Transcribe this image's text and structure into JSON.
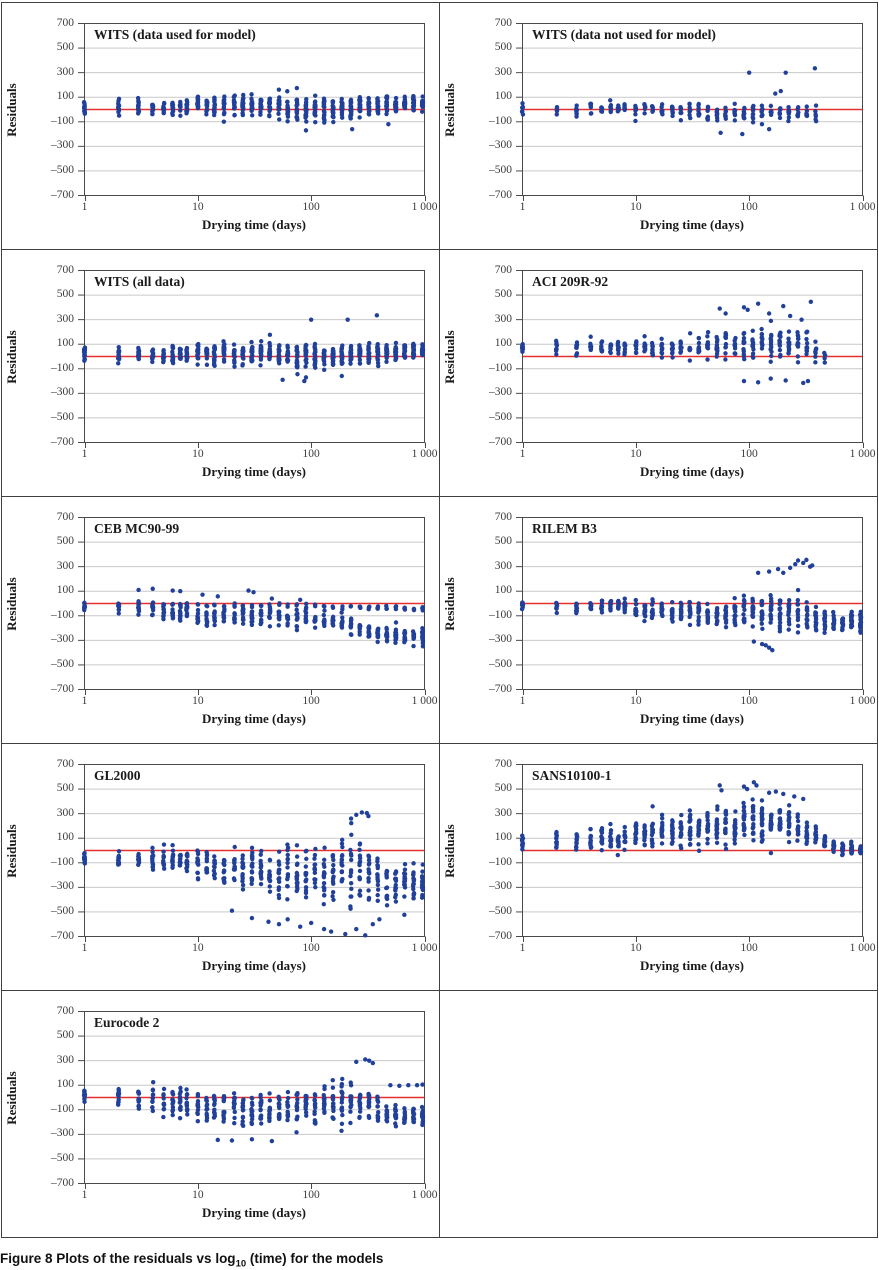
{
  "figure": {
    "caption": {
      "prefix": "Figure 8",
      "text_before_sub": " Plots of the residuals vs log",
      "subscript": "10",
      "text_after_sub": " (time) for the models"
    }
  },
  "axes": {
    "x_label": "Drying time (days)",
    "y_label": "Residuals",
    "x_scale": "log10",
    "x_range": [
      1,
      1000
    ],
    "y_range": [
      -700,
      700
    ],
    "x_tick_values": [
      1,
      10,
      100,
      1000
    ],
    "x_tick_labels": [
      "1",
      "10",
      "100",
      "1 000"
    ],
    "y_tick_values": [
      700,
      500,
      300,
      100,
      -100,
      -300,
      -500,
      -700
    ],
    "y_tick_labels": [
      "700",
      "500",
      "300",
      "100",
      "–100",
      "–300",
      "–500",
      "–700"
    ],
    "gridline_values": [
      500,
      300,
      100,
      -100,
      -300,
      -500
    ],
    "zero_line_value": 0
  },
  "style": {
    "point_color": "#20409a",
    "zero_line_color": "#e4302e",
    "grid_color": "#c9c9c9",
    "frame_color": "#4a4a4a",
    "tick_color": "#4a4a4a"
  },
  "chart_data": {
    "type": "scatter",
    "layout": "2-column by 5-row grid of residual plots, last cell empty",
    "note": "profile entries are [time_days, residual_center, residual_half_spread, points_per_time] read from the figure; outliers are explicit [x,y] points",
    "x_positions": [
      1,
      2,
      3,
      4,
      5,
      6,
      7,
      8,
      10,
      12,
      14,
      17,
      21,
      25,
      30,
      36,
      43,
      52,
      62,
      75,
      90,
      108,
      130,
      156,
      187,
      224,
      269,
      323,
      387,
      464,
      557,
      668,
      801,
      961
    ],
    "plots": [
      {
        "title": "WITS (data used for model)",
        "x_max": 1000,
        "clip": [
          -175,
          180
        ],
        "profile": [
          [
            1,
            15,
            65,
            14
          ],
          [
            8,
            18,
            70,
            12
          ],
          [
            10,
            28,
            85,
            16
          ],
          [
            40,
            30,
            95,
            18
          ],
          [
            90,
            5,
            110,
            18
          ],
          [
            200,
            10,
            105,
            20
          ],
          [
            400,
            35,
            85,
            20
          ],
          [
            600,
            45,
            65,
            22
          ],
          [
            1000,
            50,
            55,
            24
          ]
        ],
        "outliers": [
          [
            90,
            -170
          ],
          [
            230,
            -160
          ],
          [
            480,
            -120
          ]
        ]
      },
      {
        "title": "WITS (data not used for model)",
        "x_max": 430,
        "clip": [
          -205,
          120
        ],
        "profile": [
          [
            1,
            10,
            55,
            8
          ],
          [
            8,
            8,
            55,
            6
          ],
          [
            10,
            0,
            60,
            7
          ],
          [
            30,
            -5,
            70,
            8
          ],
          [
            60,
            -25,
            80,
            8
          ],
          [
            100,
            -25,
            90,
            9
          ],
          [
            200,
            -30,
            90,
            8
          ],
          [
            430,
            -20,
            70,
            5
          ]
        ],
        "outliers": [
          [
            100,
            300
          ],
          [
            210,
            300
          ],
          [
            380,
            335
          ],
          [
            56,
            -190
          ],
          [
            87,
            -200
          ],
          [
            150,
            -160
          ],
          [
            390,
            -95
          ],
          [
            170,
            130
          ],
          [
            190,
            150
          ]
        ]
      },
      {
        "title": "WITS (all data)",
        "x_max": 1000,
        "clip": [
          -190,
          180
        ],
        "profile": [
          [
            1,
            15,
            65,
            16
          ],
          [
            8,
            16,
            70,
            14
          ],
          [
            10,
            25,
            85,
            18
          ],
          [
            40,
            25,
            95,
            20
          ],
          [
            90,
            0,
            110,
            20
          ],
          [
            200,
            5,
            105,
            22
          ],
          [
            400,
            30,
            85,
            22
          ],
          [
            600,
            45,
            65,
            24
          ],
          [
            1000,
            48,
            55,
            26
          ]
        ],
        "outliers": [
          [
            100,
            300
          ],
          [
            210,
            300
          ],
          [
            380,
            335
          ],
          [
            90,
            -170
          ],
          [
            56,
            -190
          ],
          [
            87,
            -200
          ]
        ]
      },
      {
        "title": "ACI 209R-92",
        "x_max": 500,
        "clip": [
          -225,
          450
        ],
        "profile": [
          [
            1,
            70,
            60,
            10
          ],
          [
            8,
            75,
            65,
            9
          ],
          [
            10,
            70,
            80,
            10
          ],
          [
            30,
            70,
            105,
            10
          ],
          [
            60,
            90,
            130,
            11
          ],
          [
            100,
            100,
            150,
            12
          ],
          [
            200,
            110,
            160,
            12
          ],
          [
            350,
            80,
            160,
            10
          ],
          [
            500,
            -30,
            50,
            3
          ]
        ],
        "outliers": [
          [
            55,
            390
          ],
          [
            62,
            350
          ],
          [
            90,
            400
          ],
          [
            97,
            380
          ],
          [
            120,
            430
          ],
          [
            150,
            350
          ],
          [
            200,
            410
          ],
          [
            230,
            330
          ],
          [
            290,
            300
          ],
          [
            350,
            445
          ],
          [
            90,
            -200
          ],
          [
            120,
            -210
          ],
          [
            155,
            -180
          ],
          [
            210,
            -195
          ],
          [
            300,
            -215
          ],
          [
            330,
            -200
          ]
        ]
      },
      {
        "title": "CEB MC90-99",
        "x_max": 1000,
        "clip": [
          -355,
          125
        ],
        "profile": [
          [
            1,
            -35,
            55,
            9
          ],
          [
            3,
            -45,
            75,
            10
          ],
          [
            8,
            -75,
            80,
            10
          ],
          [
            10,
            -105,
            70,
            10
          ],
          [
            30,
            -105,
            90,
            11
          ],
          [
            60,
            -115,
            90,
            10
          ],
          [
            100,
            -125,
            90,
            10
          ],
          [
            200,
            -175,
            80,
            10
          ],
          [
            300,
            -225,
            70,
            12
          ],
          [
            430,
            -255,
            70,
            14
          ],
          [
            1000,
            -265,
            75,
            16
          ]
        ],
        "band2": [
          [
            60,
            -15,
            20,
            2
          ],
          [
            1000,
            -40,
            25,
            3
          ]
        ],
        "outliers": [
          [
            3,
            110
          ],
          [
            4,
            120
          ],
          [
            6,
            105
          ],
          [
            7,
            100
          ],
          [
            11,
            72
          ],
          [
            15,
            58
          ],
          [
            28,
            105
          ],
          [
            31,
            92
          ],
          [
            45,
            40
          ],
          [
            80,
            30
          ]
        ]
      },
      {
        "title": "RILEM B3",
        "x_max": 1000,
        "clip": [
          -390,
          365
        ],
        "profile": [
          [
            1,
            -15,
            50,
            10
          ],
          [
            8,
            -25,
            70,
            11
          ],
          [
            10,
            -45,
            85,
            13
          ],
          [
            30,
            -75,
            100,
            14
          ],
          [
            60,
            -80,
            110,
            14
          ],
          [
            100,
            -60,
            140,
            16
          ],
          [
            200,
            -55,
            160,
            16
          ],
          [
            300,
            -75,
            155,
            14
          ],
          [
            430,
            -145,
            95,
            14
          ],
          [
            1000,
            -165,
            90,
            18
          ]
        ],
        "outliers": [
          [
            200,
            250
          ],
          [
            230,
            290
          ],
          [
            255,
            320
          ],
          [
            270,
            350
          ],
          [
            300,
            330
          ],
          [
            320,
            355
          ],
          [
            345,
            300
          ],
          [
            360,
            310
          ],
          [
            150,
            260
          ],
          [
            180,
            280
          ],
          [
            120,
            250
          ],
          [
            130,
            -330
          ],
          [
            150,
            -360
          ],
          [
            160,
            -380
          ],
          [
            140,
            -340
          ],
          [
            110,
            -310
          ]
        ]
      },
      {
        "title": "GL2000",
        "x_max": 1000,
        "clip": [
          -700,
          315
        ],
        "profile": [
          [
            1,
            -55,
            65,
            11
          ],
          [
            8,
            -80,
            95,
            12
          ],
          [
            10,
            -105,
            130,
            13
          ],
          [
            20,
            -135,
            180,
            14
          ],
          [
            40,
            -165,
            220,
            15
          ],
          [
            80,
            -175,
            260,
            15
          ],
          [
            150,
            -180,
            290,
            16
          ],
          [
            250,
            -160,
            290,
            15
          ],
          [
            430,
            -280,
            200,
            14
          ],
          [
            1000,
            -300,
            190,
            18
          ]
        ],
        "outliers": [
          [
            20,
            -490
          ],
          [
            30,
            -550
          ],
          [
            42,
            -580
          ],
          [
            52,
            -600
          ],
          [
            62,
            -560
          ],
          [
            80,
            -620
          ],
          [
            100,
            -590
          ],
          [
            130,
            -640
          ],
          [
            150,
            -660
          ],
          [
            200,
            -680
          ],
          [
            300,
            -690
          ],
          [
            250,
            -640
          ],
          [
            350,
            -600
          ],
          [
            400,
            -560
          ],
          [
            250,
            290
          ],
          [
            280,
            310
          ],
          [
            310,
            305
          ],
          [
            225,
            260
          ],
          [
            320,
            280
          ]
        ]
      },
      {
        "title": "SANS10100-1",
        "x_max": 1000,
        "clip": [
          -85,
          560
        ],
        "profile": [
          [
            1,
            75,
            80,
            12
          ],
          [
            8,
            100,
            110,
            12
          ],
          [
            10,
            130,
            120,
            14
          ],
          [
            30,
            180,
            160,
            16
          ],
          [
            60,
            200,
            175,
            18
          ],
          [
            100,
            230,
            180,
            20
          ],
          [
            200,
            230,
            170,
            18
          ],
          [
            300,
            180,
            140,
            14
          ],
          [
            430,
            90,
            80,
            12
          ],
          [
            600,
            25,
            45,
            16
          ],
          [
            1000,
            0,
            40,
            20
          ]
        ],
        "outliers": [
          [
            55,
            530
          ],
          [
            57,
            490
          ],
          [
            90,
            520
          ],
          [
            96,
            500
          ],
          [
            110,
            555
          ],
          [
            116,
            530
          ],
          [
            150,
            470
          ],
          [
            172,
            480
          ],
          [
            200,
            460
          ],
          [
            250,
            440
          ],
          [
            300,
            420
          ]
        ]
      },
      {
        "title": "Eurocode 2",
        "x_max": 1000,
        "clip": [
          -365,
          315
        ],
        "profile": [
          [
            1,
            10,
            70,
            11
          ],
          [
            4,
            -20,
            120,
            12
          ],
          [
            8,
            -40,
            130,
            12
          ],
          [
            10,
            -85,
            140,
            13
          ],
          [
            30,
            -100,
            150,
            14
          ],
          [
            60,
            -90,
            150,
            14
          ],
          [
            100,
            -60,
            160,
            15
          ],
          [
            200,
            -30,
            170,
            15
          ],
          [
            300,
            -40,
            170,
            14
          ],
          [
            430,
            -135,
            100,
            13
          ],
          [
            1000,
            -155,
            85,
            16
          ]
        ],
        "outliers": [
          [
            250,
            290
          ],
          [
            300,
            310
          ],
          [
            325,
            300
          ],
          [
            350,
            280
          ],
          [
            500,
            100
          ],
          [
            600,
            95
          ],
          [
            720,
            100
          ],
          [
            860,
            100
          ],
          [
            960,
            105
          ],
          [
            15,
            -345
          ],
          [
            20,
            -350
          ],
          [
            30,
            -340
          ],
          [
            45,
            -355
          ]
        ]
      }
    ]
  }
}
